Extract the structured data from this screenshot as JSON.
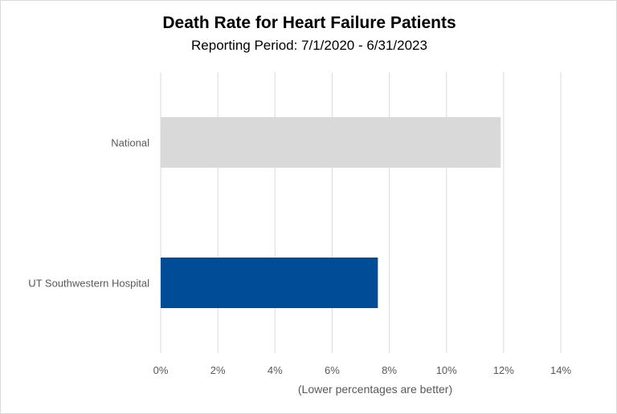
{
  "chart_data": {
    "type": "bar",
    "orientation": "horizontal",
    "title": "Death Rate for Heart Failure Patients",
    "subtitle": "Reporting Period: 7/1/2020 - 6/31/2023",
    "xlabel": "(Lower percentages are better)",
    "ylabel": "",
    "categories": [
      "National",
      "UT Southwestern Hospital"
    ],
    "values": [
      11.9,
      7.6
    ],
    "bar_colors": [
      "#d9d9d9",
      "#004c97"
    ],
    "xlim": [
      0,
      14
    ],
    "x_ticks": [
      0,
      2,
      4,
      6,
      8,
      10,
      12,
      14
    ],
    "x_tick_labels": [
      "0%",
      "2%",
      "4%",
      "6%",
      "8%",
      "10%",
      "12%",
      "14%"
    ],
    "grid": true,
    "legend": "none"
  }
}
